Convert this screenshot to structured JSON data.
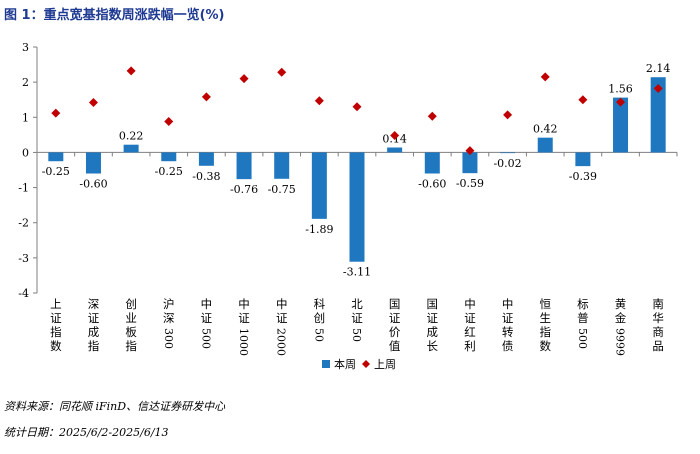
{
  "title": "图 1：重点宽基指数周涨跌幅一览(%)",
  "footer": {
    "source": "资料来源：同花顺 iFinD、信达证券研发中心",
    "date": "统计日期：2025/6/2-2025/6/13"
  },
  "chart_data": {
    "type": "bar",
    "title": "图 1：重点宽基指数周涨跌幅一览(%)",
    "categories": [
      "上证指数",
      "深证成指",
      "创业板指",
      "沪深300",
      "中证500",
      "中证1000",
      "中证2000",
      "科创50",
      "北证50",
      "国证价值",
      "国证成长",
      "中证红利",
      "中证转债",
      "恒生指数",
      "标普500",
      "黄金9999",
      "南华商品"
    ],
    "series": [
      {
        "name": "本周",
        "type": "bar",
        "color": "#1f77c0",
        "values": [
          -0.25,
          -0.6,
          0.22,
          -0.25,
          -0.38,
          -0.76,
          -0.75,
          -1.89,
          -3.11,
          0.14,
          -0.6,
          -0.59,
          -0.02,
          0.42,
          -0.39,
          1.56,
          2.14
        ],
        "labels": [
          "-0.25",
          "-0.60",
          "0.22",
          "-0.25",
          "-0.38",
          "-0.76",
          "-0.75",
          "-1.89",
          "-3.11",
          "0.14",
          "-0.60",
          "-0.59",
          "-0.02",
          "0.42",
          "-0.39",
          "1.56",
          "2.14"
        ]
      },
      {
        "name": "上周",
        "type": "scatter",
        "marker": "diamond",
        "color": "#c00000",
        "values": [
          1.12,
          1.42,
          2.32,
          0.88,
          1.58,
          2.1,
          2.28,
          1.47,
          1.3,
          0.48,
          1.03,
          0.05,
          1.07,
          2.15,
          1.5,
          1.43,
          1.82
        ]
      }
    ],
    "yticks": [
      3,
      2,
      1,
      0,
      -1,
      -2,
      -3,
      -4
    ],
    "ylim": [
      -4,
      3
    ],
    "xlabel": "",
    "ylabel": "",
    "legend_position": "bottom"
  }
}
